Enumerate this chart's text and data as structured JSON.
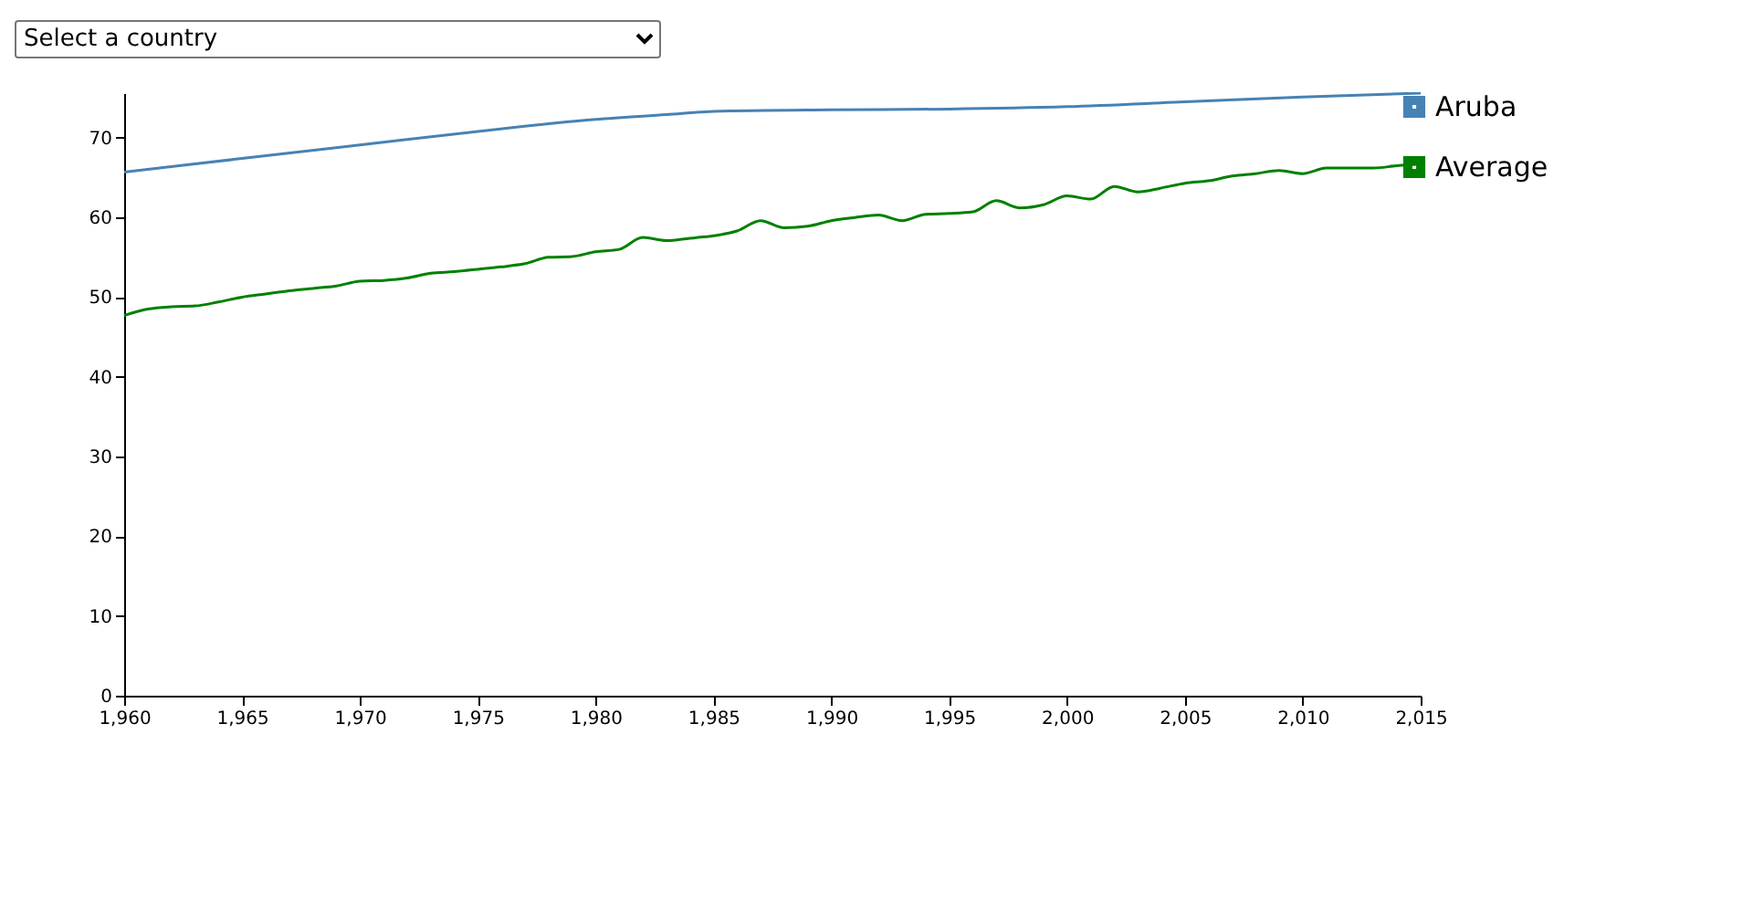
{
  "chart_data": {
    "type": "line",
    "annotations": [
      "Select a country"
    ],
    "x": [
      1960,
      1961,
      1962,
      1963,
      1964,
      1965,
      1966,
      1967,
      1968,
      1969,
      1970,
      1971,
      1972,
      1973,
      1974,
      1975,
      1976,
      1977,
      1978,
      1979,
      1980,
      1981,
      1982,
      1983,
      1984,
      1985,
      1986,
      1987,
      1988,
      1989,
      1990,
      1991,
      1992,
      1993,
      1994,
      1995,
      1996,
      1997,
      1998,
      1999,
      2000,
      2001,
      2002,
      2003,
      2004,
      2005,
      2006,
      2007,
      2008,
      2009,
      2010,
      2011,
      2012,
      2013,
      2014,
      2015
    ],
    "series": [
      {
        "name": "Aruba",
        "color": "#4682b4",
        "x": [
          1960,
          1965,
          1970,
          1975,
          1980,
          1983,
          1985,
          1990,
          1995,
          2000,
          2005,
          2010,
          2015
        ],
        "values": [
          65.7,
          67.4,
          69.1,
          70.8,
          72.3,
          72.9,
          73.3,
          73.5,
          73.6,
          73.9,
          74.5,
          75.1,
          75.6
        ]
      },
      {
        "name": "Average",
        "color": "#008000",
        "values": [
          47.7,
          48.5,
          48.8,
          48.9,
          49.4,
          50.0,
          50.4,
          50.8,
          51.1,
          51.4,
          52.0,
          52.1,
          52.4,
          53.0,
          53.2,
          53.5,
          53.8,
          54.2,
          55.0,
          55.1,
          55.7,
          56.0,
          57.5,
          57.1,
          57.4,
          57.7,
          58.3,
          59.6,
          58.7,
          58.9,
          59.6,
          60.0,
          60.3,
          59.6,
          60.4,
          60.5,
          60.7,
          62.1,
          61.2,
          61.6,
          62.7,
          62.3,
          63.9,
          63.2,
          63.7,
          64.3,
          64.6,
          65.2,
          65.5,
          65.9,
          65.5,
          66.2,
          66.2,
          66.2,
          66.5,
          66.7
        ]
      }
    ],
    "xlim": [
      1960,
      2015
    ],
    "xticks": [
      {
        "value": 1960,
        "label": "1,960"
      },
      {
        "value": 1965,
        "label": "1,965"
      },
      {
        "value": 1970,
        "label": "1,970"
      },
      {
        "value": 1975,
        "label": "1,975"
      },
      {
        "value": 1980,
        "label": "1,980"
      },
      {
        "value": 1985,
        "label": "1,985"
      },
      {
        "value": 1990,
        "label": "1,990"
      },
      {
        "value": 1995,
        "label": "1,995"
      },
      {
        "value": 2000,
        "label": "2,000"
      },
      {
        "value": 2005,
        "label": "2,005"
      },
      {
        "value": 2010,
        "label": "2,010"
      },
      {
        "value": 2015,
        "label": "2,015"
      }
    ],
    "ylim": [
      0,
      75.6
    ],
    "yticks": [
      0,
      10,
      20,
      30,
      40,
      50,
      60,
      70
    ],
    "legend": "right",
    "grid": false
  }
}
